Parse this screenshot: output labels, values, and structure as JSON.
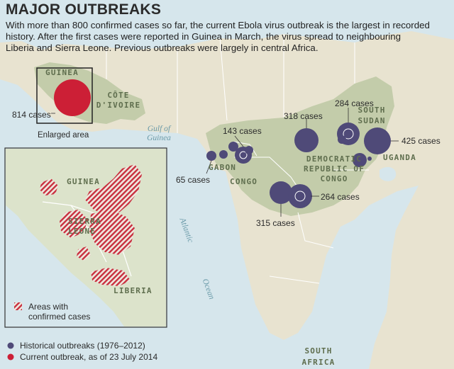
{
  "title": "MAJOR OUTBREAKS",
  "subtitle": "With more than 800 confirmed cases so far, the current Ebola virus outbreak is the largest in recorded history. After the first cases were reported in Guinea in March, the virus spread to neighbouring Liberia and Sierra Leone. Previous outbreaks were largely in central Africa.",
  "countries": {
    "guinea": "GUINEA",
    "cote_divoire": "CÔTE D'IVOIRE",
    "gabon": "GABON",
    "congo": "CONGO",
    "drc": "DEMOCRATIC REPUBLIC OF CONGO",
    "south_sudan": "SOUTH SUDAN",
    "uganda": "UGANDA",
    "south_africa": "SOUTH AFRICA"
  },
  "water_labels": {
    "gulf": "Gulf of Guinea",
    "atlantic": "Atlantic",
    "ocean": "Ocean"
  },
  "enlarged_area_label": "Enlarged area",
  "inset": {
    "guinea": "GUINEA",
    "sierra_leone": "SIERRA LEONE",
    "liberia": "LIBERIA",
    "legend": "Areas with confirmed cases"
  },
  "outbreaks": [
    {
      "label": "814 cases",
      "cases": 814,
      "type": "current",
      "location": "Guinea"
    },
    {
      "label": "143 cases",
      "cases": 143,
      "type": "historical",
      "location": "Gabon/Congo"
    },
    {
      "label": "65 cases",
      "cases": 65,
      "type": "historical",
      "location": "Gabon"
    },
    {
      "label": "318 cases",
      "cases": 318,
      "type": "historical",
      "location": "DR Congo"
    },
    {
      "label": "284 cases",
      "cases": 284,
      "type": "historical",
      "location": "DR Congo"
    },
    {
      "label": "425 cases",
      "cases": 425,
      "type": "historical",
      "location": "Uganda"
    },
    {
      "label": "264 cases",
      "cases": 264,
      "type": "historical",
      "location": "DR Congo"
    },
    {
      "label": "315 cases",
      "cases": 315,
      "type": "historical",
      "location": "DR Congo"
    }
  ],
  "legend": {
    "historical": "Historical outbreaks (1976–2012)",
    "current": "Current outbreak, as of 23 July 2014"
  },
  "colors": {
    "water": "#d6e6ec",
    "land": "#e8e3d0",
    "region": "#c3ccaa",
    "historical": "#4f4a78",
    "current": "#cc1f36"
  }
}
